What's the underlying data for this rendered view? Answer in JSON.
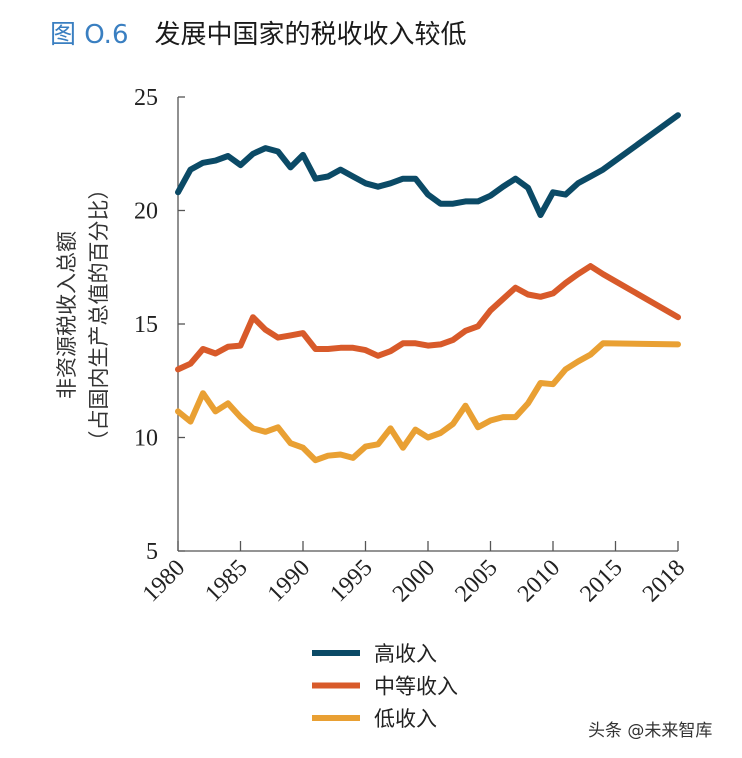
{
  "header": {
    "figure_number": "图 O.6",
    "title": "发展中国家的税收收入较低"
  },
  "watermark": "头条 @未来智库",
  "chart_data": {
    "type": "line",
    "title": "发展中国家的税收收入较低",
    "ylabel": [
      "非资源税收入总额",
      "（占国内生产总值的百分比）"
    ],
    "xlabel": "",
    "ylim": [
      5,
      25
    ],
    "xlim": [
      1980,
      2020
    ],
    "yticks": [
      "5",
      "10",
      "15",
      "20",
      "25"
    ],
    "xtick_labels": [
      "1980",
      "1985",
      "1990",
      "1995",
      "2000",
      "2005",
      "2010",
      "2015",
      "2018"
    ],
    "grid": false,
    "legend_position": "bottom",
    "x": [
      1980,
      1981,
      1982,
      1983,
      1984,
      1985,
      1986,
      1987,
      1988,
      1989,
      1990,
      1991,
      1992,
      1993,
      1994,
      1995,
      1996,
      1997,
      1998,
      1999,
      2000,
      2001,
      2002,
      2003,
      2004,
      2005,
      2006,
      2007,
      2008,
      2009,
      2010,
      2011,
      2012,
      2013,
      2014,
      2020
    ],
    "series": [
      {
        "name": "高收入",
        "color": "#0b4a66",
        "values": [
          20.8,
          21.8,
          22.1,
          22.2,
          22.4,
          22.0,
          22.5,
          22.75,
          22.6,
          21.9,
          22.45,
          21.4,
          21.5,
          21.8,
          21.5,
          21.2,
          21.05,
          21.2,
          21.4,
          21.4,
          20.7,
          20.3,
          20.3,
          20.4,
          20.4,
          20.65,
          21.05,
          21.4,
          21.0,
          19.8,
          20.8,
          20.7,
          21.2,
          21.5,
          21.8,
          24.2
        ]
      },
      {
        "name": "中等收入",
        "color": "#d85a2a",
        "values": [
          13.0,
          13.25,
          13.9,
          13.7,
          14.0,
          14.05,
          15.3,
          14.75,
          14.4,
          14.5,
          14.6,
          13.9,
          13.9,
          13.95,
          13.95,
          13.85,
          13.6,
          13.8,
          14.15,
          14.15,
          14.05,
          14.1,
          14.3,
          14.7,
          14.9,
          15.6,
          16.1,
          16.6,
          16.3,
          16.2,
          16.35,
          16.8,
          17.2,
          17.55,
          17.2,
          15.3
        ]
      },
      {
        "name": "低收入",
        "color": "#e9a033",
        "values": [
          11.15,
          10.7,
          11.95,
          11.15,
          11.5,
          10.9,
          10.4,
          10.25,
          10.45,
          9.75,
          9.55,
          9.0,
          9.2,
          9.25,
          9.1,
          9.6,
          9.7,
          10.4,
          9.55,
          10.35,
          10.0,
          10.2,
          10.6,
          11.4,
          10.45,
          10.75,
          10.9,
          10.9,
          11.5,
          12.4,
          12.35,
          13.0,
          13.35,
          13.65,
          14.15,
          14.1
        ]
      }
    ]
  }
}
